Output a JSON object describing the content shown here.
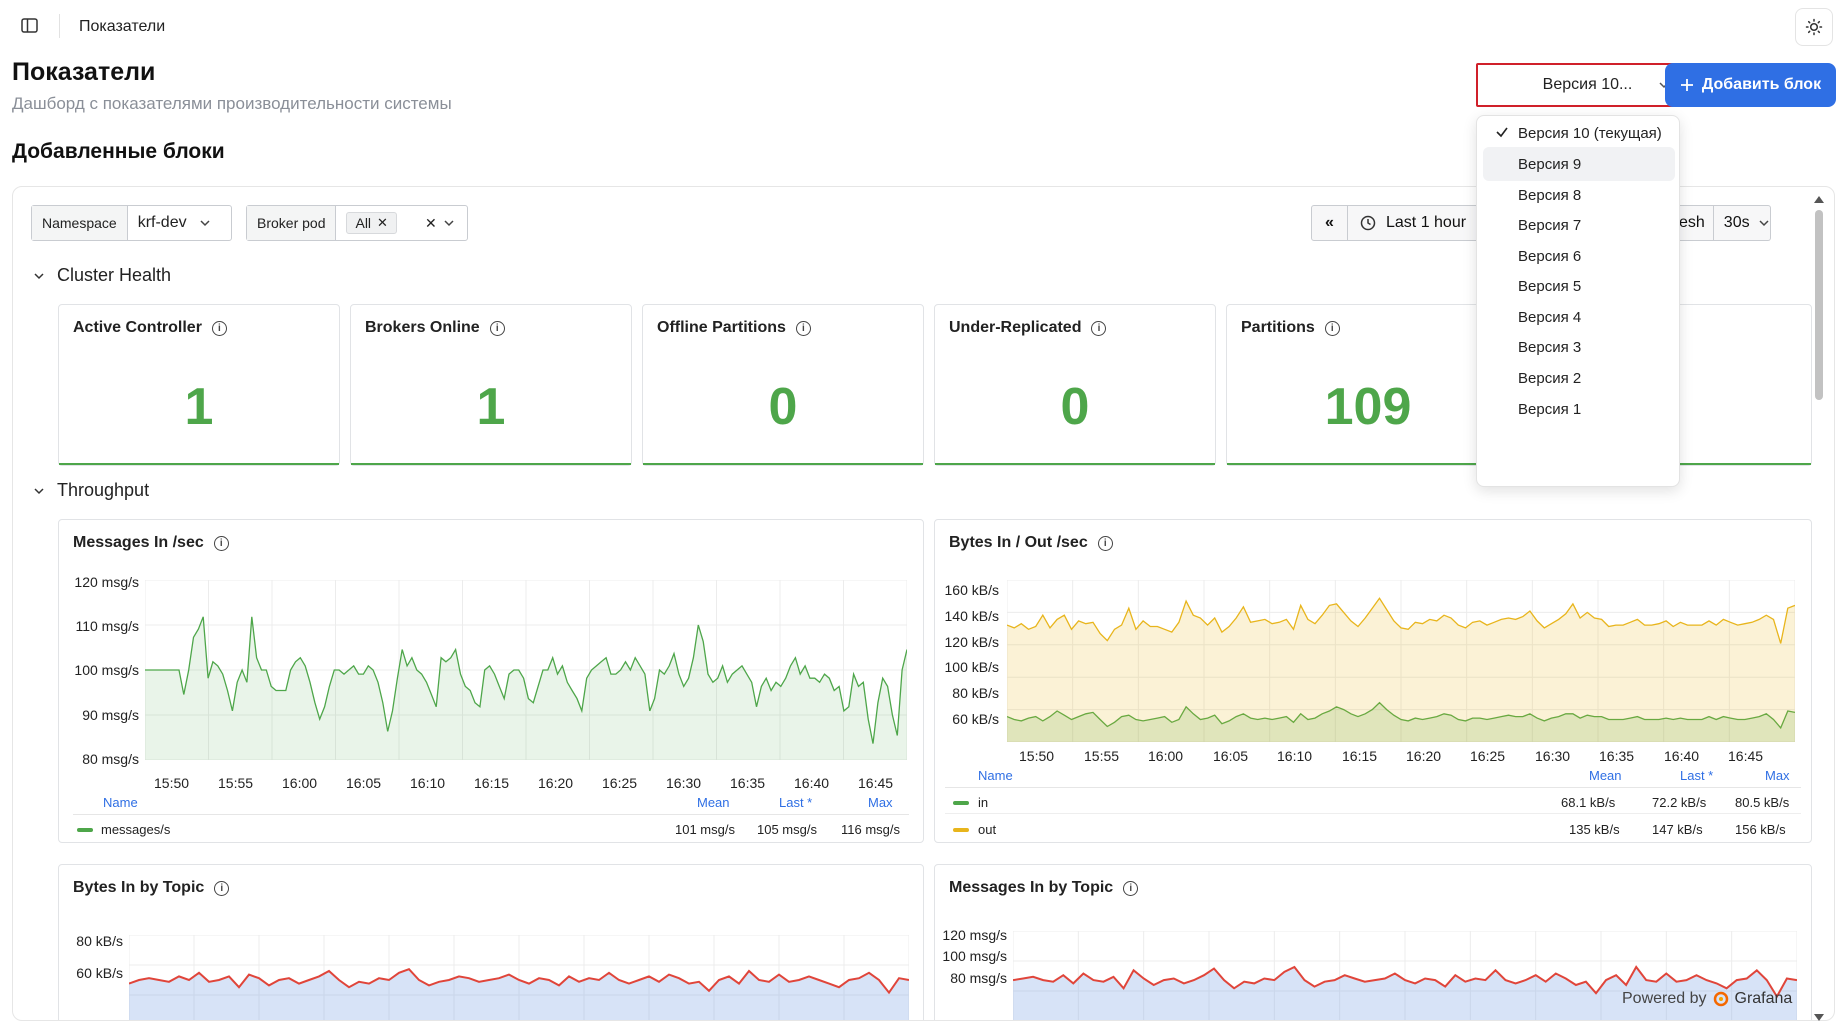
{
  "topbar": {
    "breadcrumb": "Показатели"
  },
  "header": {
    "title": "Показатели",
    "subtitle": "Дашборд с показателями производительности системы",
    "section_title": "Добавленные блоки",
    "version_select": "Версия 10...",
    "add_button": "Добавить блок"
  },
  "version_menu": {
    "items": [
      "Версия 10 (текущая)",
      "Версия 9",
      "Версия 8",
      "Версия 7",
      "Версия 6",
      "Версия 5",
      "Версия 4",
      "Версия 3",
      "Версия 2",
      "Версия 1"
    ],
    "selected": "Версия 10 (текущая)",
    "hovered": "Версия 9"
  },
  "dashboard": {
    "variables": {
      "namespace_label": "Namespace",
      "namespace_value": "krf-dev",
      "broker_label": "Broker pod",
      "broker_value": "All"
    },
    "time": {
      "range": "Last 1 hour",
      "refresh_label": "esh",
      "refresh_interval": "30s"
    },
    "rows": {
      "cluster_health": "Cluster Health",
      "throughput": "Throughput"
    },
    "stats": [
      {
        "title": "Active Controller",
        "value": "1"
      },
      {
        "title": "Brokers Online",
        "value": "1"
      },
      {
        "title": "Offline Partitions",
        "value": "0"
      },
      {
        "title": "Under-Replicated",
        "value": "0"
      },
      {
        "title": "Partitions",
        "value": "109"
      }
    ],
    "legend_headers": {
      "name": "Name",
      "mean": "Mean",
      "last": "Last *",
      "max": "Max"
    },
    "powered_by": "Powered by",
    "grafana": "Grafana"
  },
  "chart_data": [
    {
      "type": "line",
      "title": "Messages In /sec",
      "x_ticks": [
        "15:50",
        "15:55",
        "16:00",
        "16:05",
        "16:10",
        "16:15",
        "16:20",
        "16:25",
        "16:30",
        "16:35",
        "16:40",
        "16:45"
      ],
      "y_ticks": [
        "120 msg/s",
        "110 msg/s",
        "100 msg/s",
        "90 msg/s",
        "80 msg/s"
      ],
      "ylim": [
        78,
        122
      ],
      "series": [
        {
          "name": "messages/s",
          "color": "#4ea64a",
          "mean": "101 msg/s",
          "last": "105 msg/s",
          "max": "116 msg/s",
          "values": [
            100,
            100,
            100,
            100,
            100,
            100,
            100,
            100,
            94,
            100,
            108,
            110,
            113,
            98,
            102,
            101,
            99,
            95,
            90,
            97,
            100,
            97,
            113,
            103,
            100,
            100,
            96,
            95,
            95,
            95,
            100,
            102,
            103,
            101,
            97,
            92,
            88,
            91,
            96,
            100,
            100,
            99,
            100,
            101,
            99,
            99,
            101,
            100,
            97,
            92,
            85,
            90,
            98,
            105,
            101,
            103,
            100,
            99,
            97,
            94,
            91,
            103,
            102,
            103,
            105,
            99,
            96,
            95,
            92,
            91,
            100,
            101,
            99,
            96,
            93,
            99,
            100,
            100,
            98,
            93,
            92,
            96,
            100,
            100,
            103,
            99,
            101,
            97,
            95,
            93,
            90,
            98,
            100,
            101,
            102,
            103,
            99,
            99,
            100,
            102,
            100,
            103,
            101,
            99,
            90,
            93,
            100,
            99,
            101,
            104,
            99,
            96,
            98,
            103,
            111,
            107,
            99,
            97,
            98,
            101,
            97,
            99,
            100,
            101,
            99,
            97,
            91,
            96,
            98,
            95,
            97,
            96,
            98,
            101,
            103,
            99,
            101,
            98,
            98,
            97,
            99,
            98,
            95,
            96,
            90,
            91,
            99,
            96,
            97,
            88,
            82,
            92,
            98,
            96,
            89,
            84,
            100,
            105
          ]
        }
      ]
    },
    {
      "type": "area",
      "title": "Bytes In / Out /sec",
      "x_ticks": [
        "15:50",
        "15:55",
        "16:00",
        "16:05",
        "16:10",
        "16:15",
        "16:20",
        "16:25",
        "16:30",
        "16:35",
        "16:40",
        "16:45"
      ],
      "y_ticks": [
        "160 kB/s",
        "140 kB/s",
        "120 kB/s",
        "100 kB/s",
        "80 kB/s",
        "60 kB/s"
      ],
      "ylim": [
        50,
        165
      ],
      "series": [
        {
          "name": "in",
          "color": "#4ea64a",
          "mean": "68.1 kB/s",
          "last": "72.2 kB/s",
          "max": "80.5 kB/s",
          "values": [
            68,
            66,
            65,
            67,
            68,
            65,
            68,
            72,
            69,
            66,
            68,
            70,
            71,
            66,
            61,
            64,
            68,
            69,
            66,
            65,
            66,
            67,
            68,
            64,
            66,
            75,
            70,
            66,
            67,
            69,
            63,
            65,
            68,
            70,
            67,
            66,
            67,
            66,
            67,
            68,
            64,
            70,
            66,
            67,
            70,
            72,
            75,
            73,
            70,
            68,
            70,
            73,
            78,
            73,
            69,
            66,
            65,
            67,
            66,
            67,
            68,
            70,
            69,
            66,
            65,
            67,
            67,
            66,
            67,
            68,
            69,
            68,
            68,
            70,
            67,
            65,
            67,
            68,
            70,
            70,
            67,
            69,
            68,
            68,
            66,
            66,
            66,
            67,
            68,
            66,
            66,
            66,
            67,
            66,
            67,
            66,
            66,
            66,
            68,
            66,
            68,
            67,
            66,
            66,
            67,
            68,
            70,
            66,
            60,
            72,
            71
          ]
        },
        {
          "name": "out",
          "color": "#e8b51c",
          "mean": "135 kB/s",
          "last": "147 kB/s",
          "max": "156 kB/s",
          "values": [
            133,
            131,
            134,
            130,
            132,
            140,
            131,
            137,
            140,
            130,
            136,
            134,
            135,
            127,
            122,
            130,
            133,
            145,
            130,
            136,
            132,
            132,
            130,
            128,
            135,
            150,
            140,
            138,
            133,
            138,
            128,
            132,
            138,
            146,
            135,
            136,
            137,
            134,
            135,
            137,
            130,
            147,
            137,
            134,
            140,
            147,
            148,
            142,
            136,
            132,
            138,
            145,
            152,
            144,
            136,
            131,
            130,
            135,
            134,
            137,
            136,
            140,
            138,
            133,
            131,
            135,
            136,
            133,
            135,
            137,
            138,
            137,
            139,
            143,
            136,
            131,
            134,
            137,
            141,
            148,
            138,
            142,
            138,
            137,
            132,
            133,
            133,
            135,
            137,
            133,
            133,
            134,
            136,
            132,
            135,
            133,
            133,
            133,
            136,
            133,
            137,
            135,
            133,
            134,
            135,
            137,
            140,
            137,
            120,
            145,
            147
          ]
        }
      ]
    },
    {
      "type": "area",
      "title": "Bytes In by Topic",
      "y_ticks": [
        "80 kB/s",
        "60 kB/s"
      ],
      "ylim": [
        45,
        95
      ],
      "series": [
        {
          "name": "",
          "color": "#e0453a",
          "values": [
            68,
            70,
            71,
            70,
            69,
            72,
            70,
            74,
            69,
            70,
            72,
            66,
            73,
            71,
            67,
            70,
            71,
            68,
            70,
            72,
            75,
            70,
            66,
            69,
            68,
            71,
            70,
            74,
            76,
            70,
            67,
            69,
            70,
            72,
            71,
            69,
            70,
            71,
            73,
            70,
            68,
            71,
            70,
            67,
            72,
            69,
            71,
            70,
            74,
            70,
            68,
            70,
            72,
            69,
            73,
            71,
            68,
            69,
            64,
            70,
            72,
            68,
            75,
            70,
            69,
            73,
            69,
            70,
            72,
            70,
            68,
            66,
            70,
            71,
            74,
            70,
            63,
            71,
            70
          ]
        }
      ]
    },
    {
      "type": "area",
      "title": "Messages In by Topic",
      "y_ticks": [
        "120 msg/s",
        "100 msg/s",
        "80 msg/s"
      ],
      "ylim": [
        75,
        130
      ],
      "series": [
        {
          "name": "",
          "color": "#e0453a",
          "values": [
            100,
            101,
            102,
            100,
            99,
            103,
            98,
            104,
            100,
            99,
            102,
            95,
            106,
            101,
            97,
            100,
            101,
            98,
            100,
            103,
            107,
            100,
            95,
            99,
            98,
            101,
            100,
            105,
            108,
            100,
            96,
            99,
            100,
            103,
            101,
            99,
            100,
            101,
            104,
            100,
            98,
            101,
            100,
            96,
            103,
            99,
            101,
            100,
            106,
            100,
            98,
            100,
            103,
            99,
            104,
            101,
            97,
            99,
            92,
            100,
            103,
            97,
            108,
            100,
            99,
            104,
            99,
            100,
            103,
            100,
            98,
            95,
            100,
            101,
            106,
            100,
            90,
            101,
            100
          ]
        }
      ]
    }
  ]
}
